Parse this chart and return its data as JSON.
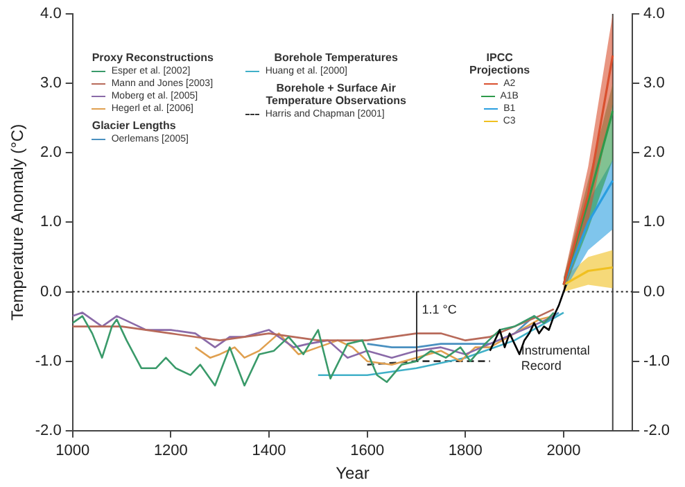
{
  "chart_data": {
    "type": "line",
    "xlabel": "Year",
    "ylabel": "Temperature Anomaly (°C)",
    "xlim": [
      1000,
      2140
    ],
    "xticks": [
      1000,
      1200,
      1400,
      1600,
      1800,
      2000
    ],
    "ylim": [
      -2,
      4
    ],
    "yticks": [
      {
        "value": -2,
        "label": "-2.0"
      },
      {
        "value": -1,
        "label": "-1.0"
      },
      {
        "value": 0,
        "label": "0.0"
      },
      {
        "value": 1,
        "label": "1.0"
      },
      {
        "value": 2,
        "label": "2.0"
      },
      {
        "value": 3,
        "label": "3.0"
      },
      {
        "value": 4,
        "label": "4.0"
      }
    ],
    "y2lim": [
      -2,
      4
    ],
    "y2ticks": [
      {
        "value": -2,
        "label": "-2.0"
      },
      {
        "value": -1,
        "label": "-1.0"
      },
      {
        "value": 0,
        "label": "0.0"
      },
      {
        "value": 1,
        "label": "1.0"
      },
      {
        "value": 2,
        "label": "2.0"
      },
      {
        "value": 3,
        "label": "3.0"
      },
      {
        "value": 4,
        "label": "4.0"
      }
    ],
    "grid": false,
    "legend": "top left",
    "marker": "none",
    "ref_lines": [
      {
        "axis": "y",
        "value": 0,
        "line_style": "dotted",
        "color": "#222222"
      },
      {
        "axis": "x",
        "value": 2100,
        "line_style": "solid",
        "color": "#444444"
      }
    ],
    "annotations": [
      "Proxy Reconstructions",
      "Glacier Lengths",
      "Borehole Temperatures",
      "Borehole + Surface Air Temperature Observations",
      "IPCC Projections",
      {
        "text": "1.1 °C",
        "x": 1700,
        "y": 0
      },
      {
        "text": "Instrumental Record",
        "x": 1905,
        "y": -0.95
      }
    ],
    "series": [
      {
        "name": "Esper et al. [2002]",
        "color": "#3a9a6a",
        "x": [
          1000,
          1020,
          1040,
          1060,
          1080,
          1090,
          1110,
          1140,
          1170,
          1190,
          1210,
          1240,
          1260,
          1290,
          1320,
          1350,
          1380,
          1410,
          1440,
          1470,
          1500,
          1525,
          1560,
          1590,
          1620,
          1640,
          1670,
          1700,
          1730,
          1760,
          1790,
          1810,
          1840,
          1870,
          1900,
          1940,
          1960,
          1980
        ],
        "values": [
          -0.45,
          -0.35,
          -0.6,
          -0.95,
          -0.5,
          -0.4,
          -0.7,
          -1.1,
          -1.1,
          -0.95,
          -1.1,
          -1.2,
          -1.05,
          -1.35,
          -0.8,
          -1.35,
          -0.9,
          -0.85,
          -0.65,
          -0.9,
          -0.55,
          -1.25,
          -0.75,
          -0.7,
          -1.2,
          -1.3,
          -1.05,
          -1.0,
          -0.85,
          -0.95,
          -0.8,
          -1.0,
          -0.75,
          -0.55,
          -0.5,
          -0.35,
          -0.45,
          -0.3
        ]
      },
      {
        "name": "Mann and Jones [2003]",
        "color": "#b86a5a",
        "x": [
          1000,
          1100,
          1200,
          1300,
          1400,
          1500,
          1600,
          1700,
          1750,
          1800,
          1850,
          1900,
          1950,
          1980
        ],
        "values": [
          -0.5,
          -0.5,
          -0.6,
          -0.7,
          -0.6,
          -0.7,
          -0.7,
          -0.6,
          -0.6,
          -0.7,
          -0.65,
          -0.5,
          -0.35,
          -0.25
        ]
      },
      {
        "name": "Moberg et al. [2005]",
        "color": "#8a6aa8",
        "x": [
          1000,
          1020,
          1060,
          1090,
          1120,
          1150,
          1200,
          1250,
          1290,
          1320,
          1350,
          1400,
          1450,
          1480,
          1520,
          1560,
          1600,
          1650,
          1700,
          1750,
          1800,
          1850,
          1900,
          1950,
          1980
        ],
        "values": [
          -0.35,
          -0.3,
          -0.5,
          -0.35,
          -0.45,
          -0.55,
          -0.55,
          -0.6,
          -0.8,
          -0.65,
          -0.65,
          -0.55,
          -0.8,
          -0.75,
          -0.7,
          -0.95,
          -0.85,
          -0.95,
          -0.85,
          -0.8,
          -0.9,
          -0.75,
          -0.6,
          -0.45,
          -0.35
        ]
      },
      {
        "name": "Hegerl et al. [2006]",
        "color": "#e0a050",
        "x": [
          1250,
          1280,
          1300,
          1330,
          1350,
          1380,
          1420,
          1460,
          1500,
          1540,
          1570,
          1600,
          1650,
          1700,
          1750,
          1790,
          1820,
          1850,
          1900,
          1950,
          1980
        ],
        "values": [
          -0.8,
          -0.95,
          -0.9,
          -0.8,
          -0.95,
          -0.85,
          -0.6,
          -0.9,
          -0.8,
          -0.7,
          -0.8,
          -1.0,
          -1.05,
          -0.95,
          -0.85,
          -1.0,
          -0.8,
          -0.8,
          -0.6,
          -0.4,
          -0.35
        ]
      },
      {
        "name": "Oerlemans [2005]",
        "color": "#4a90c0",
        "x": [
          1600,
          1650,
          1700,
          1750,
          1800,
          1850,
          1900,
          1940,
          1960,
          1990
        ],
        "values": [
          -0.75,
          -0.8,
          -0.8,
          -0.75,
          -0.75,
          -0.75,
          -0.6,
          -0.35,
          -0.45,
          -0.3
        ]
      },
      {
        "name": "Huang et al. [2000]",
        "color": "#40b0c8",
        "x": [
          1500,
          1600,
          1700,
          1800,
          1900,
          1950,
          2000
        ],
        "values": [
          -1.2,
          -1.2,
          -1.1,
          -0.95,
          -0.7,
          -0.5,
          -0.3
        ]
      },
      {
        "name": "Harris and Chapman [2001]",
        "color": "#333333",
        "line_style": "dashed",
        "x": [
          1600,
          1700,
          1850
        ],
        "values": [
          -1.05,
          -1.0,
          -1.0
        ]
      },
      {
        "name": "A2",
        "color": "#d9502f",
        "x": [
          2000,
          2050,
          2100
        ],
        "values": [
          0.1,
          1.4,
          3.4
        ],
        "lower": [
          0.0,
          1.0,
          2.7
        ],
        "upper": [
          0.2,
          1.8,
          4.0
        ]
      },
      {
        "name": "A1B",
        "color": "#2e9a4a",
        "x": [
          2000,
          2050,
          2100
        ],
        "values": [
          0.1,
          1.3,
          2.6
        ],
        "lower": [
          0.0,
          0.9,
          1.9
        ],
        "upper": [
          0.2,
          1.6,
          3.0
        ]
      },
      {
        "name": "B1",
        "color": "#2a9ee0",
        "x": [
          2000,
          2050,
          2100
        ],
        "values": [
          0.1,
          1.0,
          1.6
        ],
        "lower": [
          0.0,
          0.6,
          0.9
        ],
        "upper": [
          0.2,
          1.3,
          1.9
        ]
      },
      {
        "name": "C3",
        "color": "#f0c020",
        "x": [
          2000,
          2050,
          2100
        ],
        "values": [
          0.1,
          0.3,
          0.35
        ],
        "lower": [
          0.0,
          0.1,
          0.05
        ],
        "upper": [
          0.2,
          0.5,
          0.6
        ]
      },
      {
        "color": "#000000",
        "x": [
          1850,
          1860,
          1870,
          1880,
          1890,
          1900,
          1910,
          1920,
          1930,
          1940,
          1950,
          1960,
          1970,
          1980,
          1990,
          2000,
          2005
        ],
        "values": [
          -0.85,
          -0.7,
          -0.55,
          -0.8,
          -0.6,
          -0.75,
          -0.9,
          -0.7,
          -0.6,
          -0.45,
          -0.6,
          -0.5,
          -0.55,
          -0.35,
          -0.2,
          0.0,
          0.1
        ]
      }
    ]
  }
}
